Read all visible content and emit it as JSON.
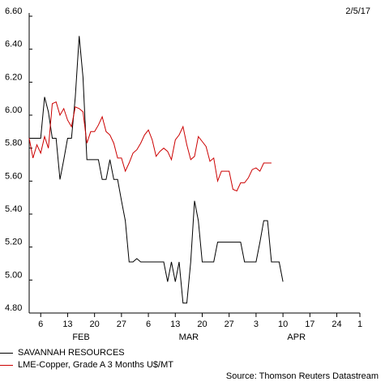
{
  "header": {
    "date": "2/5/17"
  },
  "footer": {
    "source": "Source: Thomson Reuters Datastream"
  },
  "chart_data": {
    "type": "line",
    "ylim": [
      4.8,
      6.6
    ],
    "xlim": [
      0,
      86
    ],
    "grid": false,
    "legend_placement": "bottom-left",
    "y_ticks": [
      "4.80",
      "5.00",
      "5.20",
      "5.40",
      "5.60",
      "5.80",
      "6.00",
      "6.20",
      "6.40",
      "6.60"
    ],
    "x_ticks": [
      {
        "x": 3,
        "label": "6"
      },
      {
        "x": 10,
        "label": "13"
      },
      {
        "x": 17,
        "label": "20"
      },
      {
        "x": 24,
        "label": "27"
      },
      {
        "x": 31,
        "label": "6"
      },
      {
        "x": 38,
        "label": "13"
      },
      {
        "x": 45,
        "label": "20"
      },
      {
        "x": 52,
        "label": "27"
      },
      {
        "x": 59,
        "label": "3"
      },
      {
        "x": 66,
        "label": "10"
      },
      {
        "x": 73,
        "label": "17"
      },
      {
        "x": 80,
        "label": "24"
      },
      {
        "x": 87,
        "label": "1"
      }
    ],
    "month_labels": [
      {
        "x": 13.5,
        "label": "FEB"
      },
      {
        "x": 41.5,
        "label": "MAR"
      },
      {
        "x": 69.5,
        "label": "APR"
      }
    ],
    "series": [
      {
        "name": "SAVANNAH RESOURCES",
        "color": "#000000",
        "points": [
          [
            0,
            5.86
          ],
          [
            1,
            5.86
          ],
          [
            2,
            5.86
          ],
          [
            3,
            5.86
          ],
          [
            4,
            6.11
          ],
          [
            5,
            6.02
          ],
          [
            6,
            5.86
          ],
          [
            7,
            5.86
          ],
          [
            8,
            5.61
          ],
          [
            9,
            5.73
          ],
          [
            10,
            5.86
          ],
          [
            11,
            5.86
          ],
          [
            12,
            6.11
          ],
          [
            13,
            6.48
          ],
          [
            14,
            6.23
          ],
          [
            15,
            5.73
          ],
          [
            16,
            5.73
          ],
          [
            17,
            5.73
          ],
          [
            18,
            5.73
          ],
          [
            19,
            5.61
          ],
          [
            20,
            5.61
          ],
          [
            21,
            5.73
          ],
          [
            22,
            5.61
          ],
          [
            23,
            5.61
          ],
          [
            24,
            5.48
          ],
          [
            25,
            5.36
          ],
          [
            26,
            5.11
          ],
          [
            27,
            5.11
          ],
          [
            28,
            5.13
          ],
          [
            29,
            5.11
          ],
          [
            30,
            5.11
          ],
          [
            31,
            5.11
          ],
          [
            32,
            5.11
          ],
          [
            33,
            5.11
          ],
          [
            34,
            5.11
          ],
          [
            35,
            5.11
          ],
          [
            36,
            4.99
          ],
          [
            37,
            5.11
          ],
          [
            38,
            4.99
          ],
          [
            39,
            5.11
          ],
          [
            40,
            4.86
          ],
          [
            41,
            4.86
          ],
          [
            42,
            5.11
          ],
          [
            43,
            5.48
          ],
          [
            44,
            5.36
          ],
          [
            45,
            5.11
          ],
          [
            46,
            5.11
          ],
          [
            47,
            5.11
          ],
          [
            48,
            5.11
          ],
          [
            49,
            5.23
          ],
          [
            50,
            5.23
          ],
          [
            51,
            5.23
          ],
          [
            52,
            5.23
          ],
          [
            53,
            5.23
          ],
          [
            54,
            5.23
          ],
          [
            55,
            5.23
          ],
          [
            56,
            5.11
          ],
          [
            57,
            5.11
          ],
          [
            58,
            5.11
          ],
          [
            59,
            5.11
          ],
          [
            60,
            5.23
          ],
          [
            61,
            5.36
          ],
          [
            62,
            5.36
          ],
          [
            63,
            5.11
          ],
          [
            64,
            5.11
          ],
          [
            65,
            5.11
          ],
          [
            66,
            4.99
          ]
        ]
      },
      {
        "name": "LME-Copper, Grade A 3 Months U$/MT",
        "color": "#cc0000",
        "points": [
          [
            0,
            5.86
          ],
          [
            1,
            5.74
          ],
          [
            2,
            5.82
          ],
          [
            3,
            5.77
          ],
          [
            4,
            5.87
          ],
          [
            5,
            5.8
          ],
          [
            6,
            6.07
          ],
          [
            7,
            6.08
          ],
          [
            8,
            6.0
          ],
          [
            9,
            6.04
          ],
          [
            10,
            5.97
          ],
          [
            11,
            5.93
          ],
          [
            12,
            6.05
          ],
          [
            13,
            6.04
          ],
          [
            14,
            6.02
          ],
          [
            15,
            5.83
          ],
          [
            16,
            5.9
          ],
          [
            17,
            5.9
          ],
          [
            18,
            5.94
          ],
          [
            19,
            5.99
          ],
          [
            20,
            5.9
          ],
          [
            21,
            5.88
          ],
          [
            22,
            5.83
          ],
          [
            23,
            5.74
          ],
          [
            24,
            5.74
          ],
          [
            25,
            5.66
          ],
          [
            26,
            5.71
          ],
          [
            27,
            5.77
          ],
          [
            28,
            5.79
          ],
          [
            29,
            5.83
          ],
          [
            30,
            5.88
          ],
          [
            31,
            5.91
          ],
          [
            32,
            5.85
          ],
          [
            33,
            5.75
          ],
          [
            34,
            5.78
          ],
          [
            35,
            5.8
          ],
          [
            36,
            5.78
          ],
          [
            37,
            5.73
          ],
          [
            38,
            5.85
          ],
          [
            39,
            5.88
          ],
          [
            40,
            5.93
          ],
          [
            41,
            5.82
          ],
          [
            42,
            5.73
          ],
          [
            43,
            5.75
          ],
          [
            44,
            5.87
          ],
          [
            45,
            5.84
          ],
          [
            46,
            5.81
          ],
          [
            47,
            5.72
          ],
          [
            48,
            5.74
          ],
          [
            49,
            5.6
          ],
          [
            50,
            5.66
          ],
          [
            51,
            5.66
          ],
          [
            52,
            5.66
          ],
          [
            53,
            5.55
          ],
          [
            54,
            5.54
          ],
          [
            55,
            5.59
          ],
          [
            56,
            5.59
          ],
          [
            57,
            5.62
          ],
          [
            58,
            5.67
          ],
          [
            59,
            5.68
          ],
          [
            60,
            5.66
          ],
          [
            61,
            5.71
          ],
          [
            62,
            5.71
          ],
          [
            63,
            5.71
          ]
        ]
      }
    ]
  }
}
